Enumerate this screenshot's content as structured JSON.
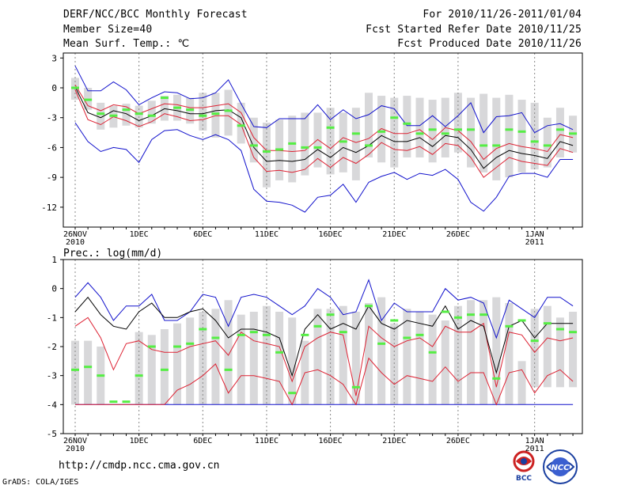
{
  "header": {
    "title": "DERF/NCC/BCC Monthly Forecast",
    "member_size": "Member Size=40",
    "variable": "Mean Surf. Temp.: ℃",
    "period": "For 2010/11/26-2011/01/04",
    "refer_date": "Fcst Started Refer Date 2010/11/25",
    "produced_date": "Fcst Produced Date 2010/11/26"
  },
  "footer": {
    "url": "http://cmdp.ncc.cma.gov.cn",
    "grads": "GrADS: COLA/IGES",
    "logo_left_text": "BCC",
    "logo_right_text": "NCC"
  },
  "colors": {
    "bar": "#d8d8da",
    "median": "#55ee44",
    "mean": "#000000",
    "inner": "#dd2233",
    "outer": "#1111cc",
    "grid": "#888888"
  },
  "chart_data": [
    {
      "type": "line",
      "title": "Mean Surf. Temp.: ℃",
      "x_tick_labels": [
        "26NOV\n2010",
        "1DEC",
        "6DEC",
        "11DEC",
        "16DEC",
        "21DEC",
        "26DEC",
        "1JAN\n2011"
      ],
      "x_tick_days": [
        1,
        6,
        11,
        16,
        21,
        26,
        31,
        37
      ],
      "ylim": [
        -14,
        3.5
      ],
      "yticks": [
        3,
        0,
        -3,
        -6,
        -9,
        -12
      ],
      "series": [
        {
          "name": "bar_top",
          "values": [
            1.0,
            0.0,
            -1.5,
            -1.8,
            -1.6,
            -1.8,
            -1.3,
            -0.8,
            -0.7,
            -1.0,
            -0.5,
            -0.5,
            -0.2,
            -1.5,
            -3.0,
            -3.5,
            -3.2,
            -2.8,
            -2.5,
            -2.5,
            -2.0,
            -2.5,
            -2.0,
            -0.5,
            -0.8,
            -1.0,
            -0.8,
            -1.0,
            -1.2,
            -1.0,
            -0.5,
            -1.0,
            -0.6,
            -1.0,
            -0.7,
            -1.2,
            -1.5,
            -3.0,
            -2.0,
            -2.8
          ]
        },
        {
          "name": "bar_bottom",
          "values": [
            -1.2,
            -2.2,
            -4.2,
            -4.0,
            -3.8,
            -4.0,
            -3.6,
            -3.3,
            -3.3,
            -3.6,
            -4.3,
            -5.0,
            -4.8,
            -5.6,
            -7.5,
            -10.0,
            -9.3,
            -9.5,
            -8.8,
            -8.0,
            -8.7,
            -8.5,
            -9.3,
            -7.0,
            -7.5,
            -8.0,
            -7.0,
            -7.0,
            -7.5,
            -7.0,
            -6.5,
            -8.0,
            -8.5,
            -9.3,
            -9.0,
            -8.5,
            -8.2,
            -8.0,
            -7.0,
            -6.5
          ]
        },
        {
          "name": "median",
          "values": [
            0.0,
            -1.2,
            -2.6,
            -2.8,
            -2.2,
            -2.6,
            -2.8,
            -1.0,
            -2.0,
            -2.2,
            -2.8,
            -2.6,
            -2.3,
            -3.8,
            -5.8,
            -6.4,
            -6.2,
            -5.6,
            -6.0,
            -6.0,
            -4.0,
            -5.4,
            -4.6,
            -5.8,
            -4.4,
            -3.0,
            -3.6,
            -4.6,
            -4.2,
            -4.6,
            -4.2,
            -4.2,
            -5.8,
            -5.8,
            -4.2,
            -4.4,
            -5.4,
            -5.8,
            -4.2,
            -4.6
          ]
        },
        {
          "name": "mean",
          "values": [
            0.1,
            -2.5,
            -3.0,
            -2.3,
            -2.6,
            -3.3,
            -2.8,
            -2.1,
            -2.3,
            -2.6,
            -2.6,
            -2.3,
            -2.2,
            -3.0,
            -6.0,
            -7.4,
            -7.3,
            -7.4,
            -7.2,
            -6.2,
            -7.0,
            -6.0,
            -6.5,
            -5.8,
            -4.8,
            -5.4,
            -5.4,
            -5.0,
            -5.9,
            -4.8,
            -5.0,
            -6.2,
            -8.1,
            -7.0,
            -6.3,
            -6.6,
            -6.8,
            -7.1,
            -5.4,
            -5.8
          ]
        },
        {
          "name": "inner_upper",
          "values": [
            0.3,
            -1.8,
            -2.3,
            -1.7,
            -1.9,
            -2.6,
            -2.1,
            -1.6,
            -1.7,
            -2.0,
            -2.0,
            -1.8,
            -1.6,
            -2.5,
            -5.0,
            -6.3,
            -6.3,
            -6.4,
            -6.3,
            -5.2,
            -6.1,
            -5.0,
            -5.5,
            -5.1,
            -4.1,
            -4.6,
            -4.6,
            -4.2,
            -5.2,
            -4.0,
            -4.3,
            -5.4,
            -7.2,
            -6.1,
            -5.6,
            -5.9,
            -6.1,
            -6.4,
            -4.7,
            -5.0
          ]
        },
        {
          "name": "inner_lower",
          "values": [
            -0.2,
            -3.2,
            -3.7,
            -2.9,
            -3.3,
            -3.9,
            -3.4,
            -2.6,
            -2.9,
            -3.3,
            -3.2,
            -2.8,
            -2.8,
            -3.7,
            -7.0,
            -8.4,
            -8.3,
            -8.5,
            -8.2,
            -7.1,
            -8.0,
            -7.0,
            -7.6,
            -6.7,
            -5.5,
            -6.2,
            -6.3,
            -5.9,
            -6.7,
            -5.6,
            -5.8,
            -7.0,
            -9.0,
            -8.0,
            -7.0,
            -7.4,
            -7.6,
            -7.8,
            -6.1,
            -6.5
          ]
        },
        {
          "name": "outer_upper",
          "values": [
            2.2,
            -0.3,
            -0.3,
            0.6,
            -0.2,
            -1.7,
            -1.0,
            -0.4,
            -0.5,
            -1.1,
            -1.0,
            -0.5,
            0.8,
            -1.6,
            -3.9,
            -4.0,
            -3.1,
            -3.1,
            -3.1,
            -1.7,
            -3.2,
            -2.2,
            -3.1,
            -2.7,
            -1.8,
            -2.1,
            -3.8,
            -3.8,
            -2.8,
            -3.9,
            -2.8,
            -1.5,
            -4.5,
            -2.9,
            -2.8,
            -2.5,
            -4.5,
            -3.8,
            -3.6,
            -4.2
          ]
        },
        {
          "name": "outer_lower",
          "values": [
            -3.5,
            -5.4,
            -6.4,
            -6.0,
            -6.2,
            -7.5,
            -5.2,
            -4.3,
            -4.2,
            -4.8,
            -5.2,
            -4.7,
            -5.2,
            -6.3,
            -10.2,
            -11.4,
            -11.5,
            -11.8,
            -12.5,
            -11.0,
            -10.8,
            -9.7,
            -11.5,
            -9.5,
            -8.9,
            -8.5,
            -9.2,
            -8.6,
            -8.8,
            -8.2,
            -9.2,
            -11.5,
            -12.4,
            -11.0,
            -8.9,
            -8.6,
            -8.6,
            -9.0,
            -7.2,
            -7.2
          ]
        }
      ]
    },
    {
      "type": "line",
      "title": "Prec.: log(mm/d)",
      "x_tick_labels": [
        "26NOV\n2010",
        "1DEC",
        "6DEC",
        "11DEC",
        "16DEC",
        "21DEC",
        "26DEC",
        "1JAN\n2011"
      ],
      "x_tick_days": [
        1,
        6,
        11,
        16,
        21,
        26,
        31,
        37
      ],
      "ylim": [
        -5,
        1
      ],
      "yticks": [
        1,
        0,
        -1,
        -2,
        -3,
        -4,
        -5
      ],
      "series": [
        {
          "name": "bar_top",
          "values": [
            -1.8,
            -1.8,
            -2.0,
            -4.0,
            -4.0,
            -1.5,
            -1.6,
            -1.4,
            -1.2,
            -1.0,
            -0.8,
            -0.7,
            -0.4,
            -0.9,
            -0.8,
            -0.6,
            -0.8,
            -1.0,
            -1.8,
            -0.7,
            -0.7,
            -0.6,
            -0.8,
            -0.5,
            -0.3,
            -1.2,
            -0.7,
            -0.8,
            -0.9,
            -1.1,
            -0.6,
            -0.4,
            -0.4,
            -0.3,
            -0.5,
            -2.5,
            -0.7,
            -0.6,
            -1.0,
            -0.8
          ]
        },
        {
          "name": "bar_bottom",
          "values": [
            -4.0,
            -4.0,
            -4.0,
            -4.0,
            -4.0,
            -4.0,
            -4.0,
            -4.0,
            -4.0,
            -4.0,
            -4.0,
            -4.0,
            -4.0,
            -4.0,
            -4.0,
            -4.0,
            -4.0,
            -4.0,
            -4.0,
            -4.0,
            -4.0,
            -4.0,
            -4.0,
            -4.0,
            -4.0,
            -4.0,
            -4.0,
            -4.0,
            -4.0,
            -4.0,
            -4.0,
            -4.0,
            -4.0,
            -4.0,
            -4.0,
            -4.0,
            -3.4,
            -3.4,
            -3.4,
            -3.4
          ]
        },
        {
          "name": "median",
          "values": [
            -2.8,
            -2.7,
            -3.0,
            -3.9,
            -3.9,
            -3.0,
            -2.0,
            -2.8,
            -2.0,
            -1.9,
            -1.4,
            -1.7,
            -2.8,
            -1.6,
            -1.5,
            -1.6,
            -2.2,
            -3.6,
            -1.6,
            -1.3,
            -0.9,
            -1.5,
            -3.4,
            -0.6,
            -1.9,
            -1.1,
            -1.7,
            -1.6,
            -2.2,
            -0.8,
            -1.0,
            -0.9,
            -0.9,
            -3.1,
            -1.3,
            -1.1,
            -1.8,
            -1.2,
            -1.4,
            -1.5
          ]
        },
        {
          "name": "mean",
          "values": [
            -0.8,
            -0.3,
            -0.9,
            -1.3,
            -1.4,
            -0.8,
            -0.5,
            -1.0,
            -1.0,
            -0.8,
            -0.7,
            -1.1,
            -1.7,
            -1.4,
            -1.4,
            -1.5,
            -1.7,
            -3.0,
            -1.4,
            -0.9,
            -1.4,
            -1.2,
            -1.4,
            -0.6,
            -1.2,
            -1.4,
            -1.1,
            -1.2,
            -1.3,
            -0.6,
            -1.4,
            -1.1,
            -1.3,
            -2.9,
            -1.3,
            -1.1,
            -1.7,
            -1.2,
            -1.2,
            -1.2
          ]
        },
        {
          "name": "inner_upper",
          "values": [
            -1.3,
            -1.0,
            -1.7,
            -2.8,
            -1.9,
            -1.8,
            -2.1,
            -2.2,
            -2.2,
            -2.0,
            -1.9,
            -1.8,
            -2.3,
            -1.5,
            -1.8,
            -1.9,
            -2.0,
            -3.2,
            -2.0,
            -1.7,
            -1.5,
            -1.6,
            -3.7,
            -1.3,
            -1.7,
            -2.0,
            -1.8,
            -1.7,
            -2.0,
            -1.3,
            -1.5,
            -1.5,
            -1.2,
            -3.4,
            -1.5,
            -1.6,
            -2.2,
            -1.7,
            -1.8,
            -1.7
          ]
        },
        {
          "name": "inner_lower",
          "values": [
            -4.0,
            -4.0,
            -4.0,
            -4.0,
            -4.0,
            -4.0,
            -4.0,
            -4.0,
            -3.5,
            -3.3,
            -3.0,
            -2.6,
            -3.6,
            -3.0,
            -3.0,
            -3.1,
            -3.2,
            -4.0,
            -2.9,
            -2.8,
            -3.0,
            -3.3,
            -4.0,
            -2.4,
            -2.9,
            -3.3,
            -3.0,
            -3.1,
            -3.2,
            -2.7,
            -3.2,
            -2.9,
            -2.9,
            -4.0,
            -2.9,
            -2.8,
            -3.6,
            -3.0,
            -2.8,
            -3.2
          ]
        },
        {
          "name": "outer_upper",
          "values": [
            -0.3,
            0.2,
            -0.3,
            -1.1,
            -0.6,
            -0.6,
            -0.2,
            -1.1,
            -1.1,
            -0.8,
            -0.2,
            -0.3,
            -1.3,
            -0.3,
            -0.2,
            -0.3,
            -0.6,
            -0.9,
            -0.6,
            0.0,
            -0.3,
            -0.9,
            -0.8,
            0.3,
            -1.1,
            -0.5,
            -0.8,
            -0.8,
            -0.8,
            0.0,
            -0.4,
            -0.3,
            -0.5,
            -1.7,
            -0.4,
            -0.7,
            -1.0,
            -0.3,
            -0.3,
            -0.6
          ]
        },
        {
          "name": "outer_lower",
          "values": [
            -4.0,
            -4.0,
            -4.0,
            -4.0,
            -4.0,
            -4.0,
            -4.0,
            -4.0,
            -4.0,
            -4.0,
            -4.0,
            -4.0,
            -4.0,
            -4.0,
            -4.0,
            -4.0,
            -4.0,
            -4.0,
            -4.0,
            -4.0,
            -4.0,
            -4.0,
            -4.0,
            -4.0,
            -4.0,
            -4.0,
            -4.0,
            -4.0,
            -4.0,
            -4.0,
            -4.0,
            -4.0,
            -4.0,
            -4.0,
            -4.0,
            -4.0,
            -4.0,
            -4.0,
            -4.0,
            -4.0
          ]
        }
      ]
    }
  ]
}
